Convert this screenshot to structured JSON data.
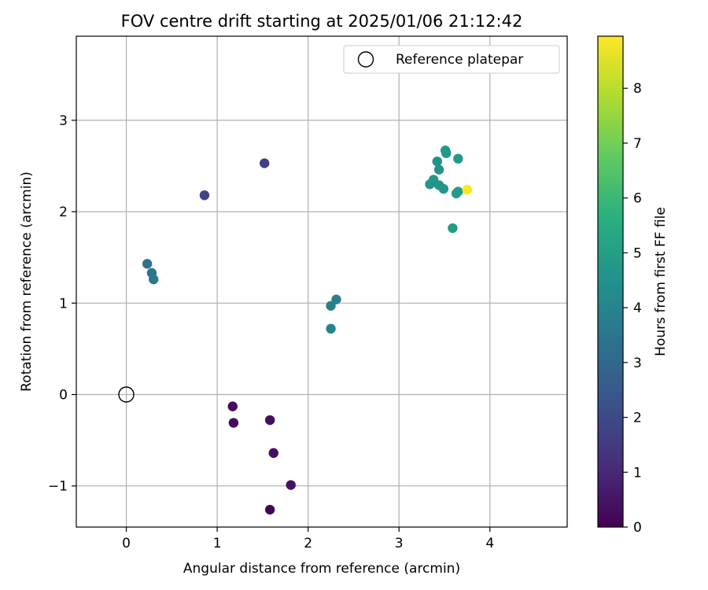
{
  "chart_data": {
    "type": "scatter",
    "title": "FOV centre drift starting at 2025/01/06 21:12:42",
    "xlabel": "Angular distance from reference (arcmin)",
    "ylabel": "Rotation from reference (arcmin)",
    "xlim": [
      -0.55,
      4.85
    ],
    "ylim": [
      -1.45,
      3.92
    ],
    "xticks": [
      0,
      1,
      2,
      3,
      4
    ],
    "xtick_labels": [
      "0",
      "1",
      "2",
      "3",
      "4"
    ],
    "yticks": [
      -1,
      0,
      1,
      2,
      3
    ],
    "ytick_labels": [
      "−1",
      "0",
      "1",
      "2",
      "3"
    ],
    "grid": true,
    "legend": {
      "placement": "top-right",
      "entries": [
        "Reference platepar"
      ]
    },
    "reference_point": {
      "x": 0,
      "y": 0,
      "name": "Reference platepar"
    },
    "colorbar": {
      "label": "Hours from first FF file",
      "range": [
        0,
        8.95
      ],
      "ticks": [
        0,
        1,
        2,
        3,
        4,
        5,
        6,
        7,
        8
      ],
      "tick_labels": [
        "0",
        "1",
        "2",
        "3",
        "4",
        "5",
        "6",
        "7",
        "8"
      ],
      "colormap": "viridis"
    },
    "points": [
      {
        "x": 1.17,
        "y": -0.13,
        "c": 0.2
      },
      {
        "x": 1.18,
        "y": -0.31,
        "c": 0.2
      },
      {
        "x": 1.58,
        "y": -0.28,
        "c": 0.3
      },
      {
        "x": 1.62,
        "y": -0.64,
        "c": 0.3
      },
      {
        "x": 1.81,
        "y": -0.99,
        "c": 0.4
      },
      {
        "x": 1.58,
        "y": -1.26,
        "c": 0.1
      },
      {
        "x": 0.86,
        "y": 2.18,
        "c": 1.8
      },
      {
        "x": 1.52,
        "y": 2.53,
        "c": 1.7
      },
      {
        "x": 0.23,
        "y": 1.43,
        "c": 3.4
      },
      {
        "x": 0.28,
        "y": 1.33,
        "c": 3.5
      },
      {
        "x": 0.3,
        "y": 1.26,
        "c": 3.6
      },
      {
        "x": 2.25,
        "y": 0.97,
        "c": 3.9
      },
      {
        "x": 2.31,
        "y": 1.04,
        "c": 3.9
      },
      {
        "x": 2.25,
        "y": 0.72,
        "c": 4.0
      },
      {
        "x": 3.51,
        "y": 2.67,
        "c": 4.8
      },
      {
        "x": 3.52,
        "y": 2.64,
        "c": 4.8
      },
      {
        "x": 3.65,
        "y": 2.58,
        "c": 4.7
      },
      {
        "x": 3.42,
        "y": 2.55,
        "c": 4.6
      },
      {
        "x": 3.44,
        "y": 2.46,
        "c": 4.6
      },
      {
        "x": 3.38,
        "y": 2.35,
        "c": 4.7
      },
      {
        "x": 3.34,
        "y": 2.3,
        "c": 4.6
      },
      {
        "x": 3.44,
        "y": 2.29,
        "c": 4.6
      },
      {
        "x": 3.49,
        "y": 2.25,
        "c": 4.7
      },
      {
        "x": 3.65,
        "y": 2.22,
        "c": 4.9
      },
      {
        "x": 3.63,
        "y": 2.2,
        "c": 4.9
      },
      {
        "x": 3.59,
        "y": 1.82,
        "c": 4.9
      },
      {
        "x": 3.75,
        "y": 2.24,
        "c": 8.95
      }
    ]
  }
}
